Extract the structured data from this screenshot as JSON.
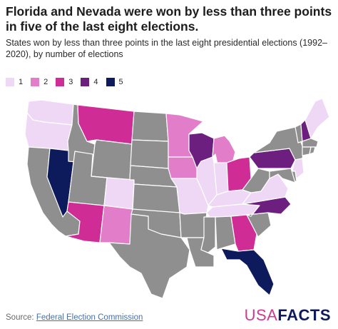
{
  "title": "Florida and Nevada were won by less than three points in five of the last eight elections.",
  "subtitle": "States won by less than three points in the last eight presidential elections (1992–2020), by number of elections",
  "legend": [
    {
      "label": "1",
      "color": "#efd8f5"
    },
    {
      "label": "2",
      "color": "#e27ec9"
    },
    {
      "label": "3",
      "color": "#cf2c96"
    },
    {
      "label": "4",
      "color": "#6c1f7f"
    },
    {
      "label": "5",
      "color": "#0d1a5b"
    }
  ],
  "zero_color": "#8f8f8f",
  "source_prefix": "Source: ",
  "source_link": "Federal Election Commission",
  "logo": {
    "usa": "USA",
    "facts": "FACTS"
  },
  "states": {
    "WA": 1,
    "OR": 1,
    "CA": 0,
    "NV": 5,
    "ID": 0,
    "MT": 3,
    "WY": 0,
    "UT": 0,
    "AZ": 3,
    "CO": 1,
    "NM": 2,
    "ND": 0,
    "SD": 0,
    "NE": 0,
    "KS": 0,
    "OK": 0,
    "TX": 0,
    "MN": 2,
    "IA": 2,
    "MO": 1,
    "AR": 0,
    "LA": 0,
    "WI": 4,
    "IL": 1,
    "MI": 2,
    "IN": 1,
    "OH": 3,
    "KY": 1,
    "TN": 1,
    "MS": 0,
    "AL": 0,
    "GA": 3,
    "FL": 5,
    "SC": 0,
    "NC": 4,
    "VA": 1,
    "WV": 0,
    "PA": 4,
    "NY": 0,
    "VT": 0,
    "NH": 4,
    "ME": 1,
    "MA": 0,
    "CT": 0,
    "RI": 0,
    "NJ": 1,
    "DE": 0,
    "MD": 0
  }
}
